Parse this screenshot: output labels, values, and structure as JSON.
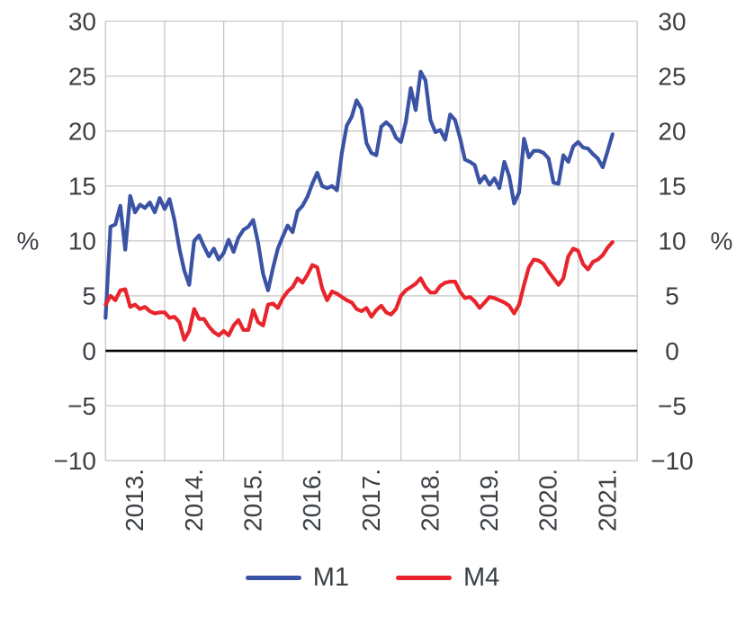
{
  "chart_data": {
    "type": "line",
    "title": "",
    "grid": true,
    "legend_position": "bottom",
    "y_axis": {
      "label": "%",
      "min": -10,
      "max": 30,
      "tick_values": [
        30,
        25,
        20,
        15,
        10,
        5,
        0,
        -5,
        -10
      ],
      "tick_labels": [
        "30",
        "25",
        "20",
        "15",
        "10",
        "5",
        "0",
        "−5",
        "−10"
      ],
      "sides": "both",
      "zero_line": true
    },
    "x_axis": {
      "tick_labels": [
        "2013.",
        "2014.",
        "2015.",
        "2016.",
        "2017.",
        "2018.",
        "2019.",
        "2020.",
        "2021."
      ],
      "start": "2013-01",
      "end": "2021-08",
      "frequency": "monthly"
    },
    "series": [
      {
        "name": "M1",
        "color": "#3a53a5",
        "values": [
          3.0,
          11.3,
          11.5,
          13.2,
          9.2,
          14.1,
          12.6,
          13.3,
          13.0,
          13.5,
          12.6,
          13.9,
          12.9,
          13.8,
          11.9,
          9.3,
          7.3,
          6.0,
          10.0,
          10.5,
          9.5,
          8.6,
          9.3,
          8.3,
          8.9,
          10.1,
          9.0,
          10.3,
          11.0,
          11.3,
          11.9,
          9.8,
          7.0,
          5.5,
          7.5,
          9.3,
          10.4,
          11.4,
          10.8,
          12.7,
          13.2,
          14.0,
          15.2,
          16.2,
          15.0,
          14.8,
          15.0,
          14.6,
          18.0,
          20.5,
          21.3,
          22.8,
          22.0,
          18.9,
          18.0,
          17.8,
          20.4,
          20.8,
          20.4,
          19.4,
          19.0,
          20.8,
          23.9,
          21.9,
          25.4,
          24.6,
          21.0,
          19.9,
          20.1,
          19.2,
          21.5,
          21.0,
          19.4,
          17.4,
          17.2,
          16.9,
          15.3,
          15.9,
          15.1,
          15.7,
          14.8,
          17.2,
          15.9,
          13.4,
          14.4,
          19.3,
          17.6,
          18.2,
          18.2,
          18.0,
          17.5,
          15.3,
          15.2,
          17.8,
          17.2,
          18.6,
          19.0,
          18.5,
          18.4,
          17.9,
          17.5,
          16.7,
          18.2,
          19.7
        ]
      },
      {
        "name": "M4",
        "color": "#e8242c",
        "values": [
          4.2,
          5.0,
          4.6,
          5.5,
          5.6,
          4.0,
          4.2,
          3.8,
          4.0,
          3.6,
          3.4,
          3.5,
          3.5,
          3.0,
          3.1,
          2.6,
          1.0,
          1.8,
          3.8,
          2.9,
          2.9,
          2.2,
          1.7,
          1.4,
          1.8,
          1.4,
          2.3,
          2.8,
          1.9,
          1.9,
          3.7,
          2.6,
          2.3,
          4.2,
          4.3,
          3.9,
          4.8,
          5.4,
          5.8,
          6.6,
          6.2,
          6.9,
          7.8,
          7.6,
          5.7,
          4.6,
          5.4,
          5.2,
          4.9,
          4.6,
          4.4,
          3.8,
          3.6,
          3.9,
          3.1,
          3.7,
          4.1,
          3.5,
          3.3,
          3.8,
          5.0,
          5.5,
          5.8,
          6.1,
          6.6,
          5.8,
          5.3,
          5.3,
          5.9,
          6.2,
          6.3,
          6.3,
          5.4,
          4.8,
          4.9,
          4.5,
          3.9,
          4.4,
          4.9,
          4.8,
          4.6,
          4.4,
          4.1,
          3.4,
          4.2,
          6.0,
          7.6,
          8.3,
          8.2,
          7.9,
          7.2,
          6.6,
          6.0,
          6.6,
          8.6,
          9.3,
          9.1,
          7.9,
          7.4,
          8.1,
          8.3,
          8.7,
          9.4,
          9.9
        ]
      }
    ],
    "style": {
      "grid_color": "#c7c7c7",
      "zero_line_color": "#000000",
      "text_color": "#3b4045",
      "background": "#ffffff"
    }
  },
  "legend": {
    "items": [
      {
        "label": "M1",
        "color": "#3a53a5"
      },
      {
        "label": "M4",
        "color": "#e8242c"
      }
    ]
  }
}
